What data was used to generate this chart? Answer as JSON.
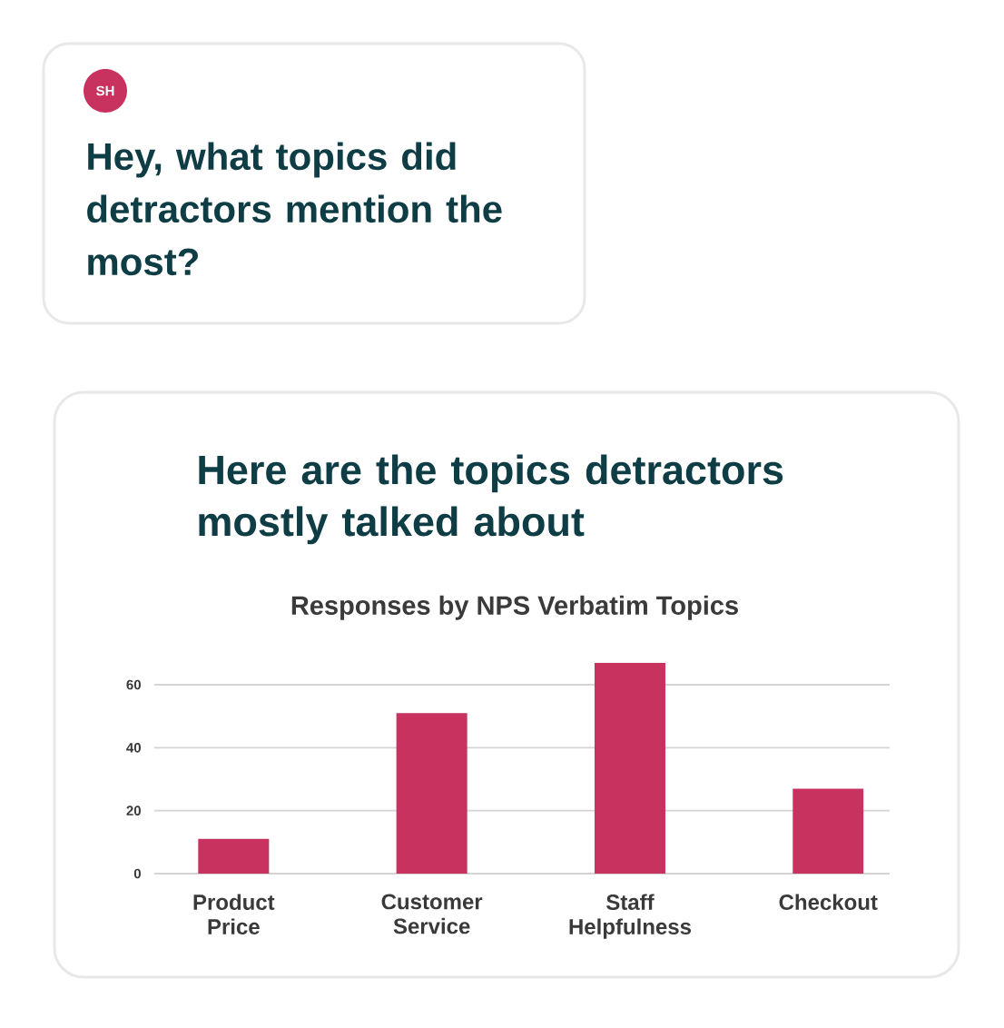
{
  "chart_data": {
    "type": "bar",
    "title": "Responses by NPS Verbatim Topics",
    "categories": [
      "Product Price",
      "Customer Service",
      "Staff Helpfulness",
      "Checkout"
    ],
    "values": [
      11,
      51,
      67,
      27
    ],
    "color": "#c8325e",
    "ylim": [
      0,
      67
    ],
    "yticks": [
      0,
      20,
      40,
      60
    ],
    "grid": "y",
    "annotations": [
      "SH",
      "Hey, what topics did detractors mention the most?",
      "Here are the topics detractors mostly talked about"
    ]
  }
}
